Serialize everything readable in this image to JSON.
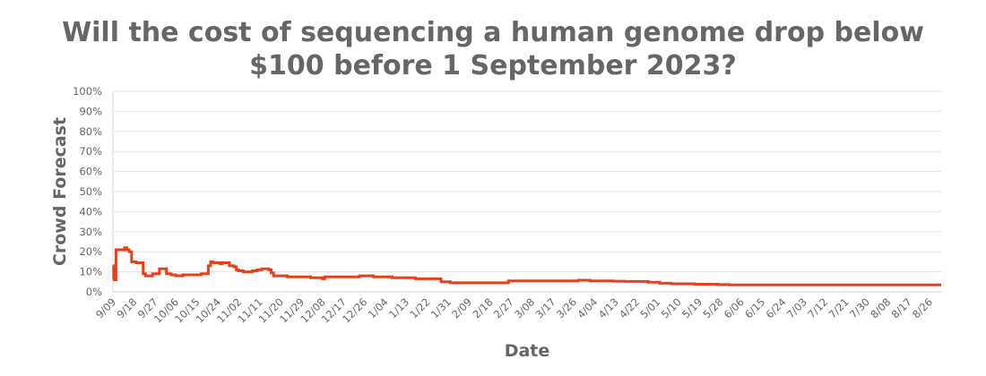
{
  "chart_data": {
    "type": "line",
    "title": "Will the cost of sequencing a human genome drop below $100 before 1 September 2023?",
    "title_lines": [
      "Will the cost of sequencing a human genome drop below",
      "$100 before 1 September 2023?"
    ],
    "xlabel": "Date",
    "ylabel": "Crowd Forecast",
    "ylim": [
      0,
      100
    ],
    "y_ticks": [
      "0%",
      "10%",
      "20%",
      "30%",
      "40%",
      "50%",
      "60%",
      "70%",
      "80%",
      "90%",
      "100%"
    ],
    "x_ticks": [
      "9/09",
      "9/18",
      "9/27",
      "10/06",
      "10/15",
      "10/24",
      "11/02",
      "11/11",
      "11/20",
      "11/29",
      "12/08",
      "12/17",
      "12/26",
      "1/04",
      "1/13",
      "1/22",
      "1/31",
      "2/09",
      "2/18",
      "2/27",
      "3/08",
      "3/17",
      "3/26",
      "4/04",
      "4/13",
      "4/22",
      "5/01",
      "5/10",
      "5/19",
      "5/28",
      "6/06",
      "6/15",
      "6/24",
      "7/03",
      "7/12",
      "7/21",
      "7/30",
      "8/08",
      "8/17",
      "8/26"
    ],
    "grid": true,
    "line_color": "#e8401c",
    "series": [
      {
        "name": "Crowd Forecast",
        "x_day_offset": [
          0,
          0.3,
          0.6,
          1,
          1.3,
          2,
          3,
          4,
          5,
          6,
          7,
          8,
          9,
          10,
          12,
          13,
          14,
          15,
          17,
          18,
          20,
          21,
          22,
          23,
          25,
          26,
          27,
          28,
          30,
          31,
          33,
          35,
          38,
          41,
          42,
          43,
          44,
          46,
          47,
          48,
          50,
          51,
          52,
          53,
          54,
          56,
          60,
          62,
          64,
          66,
          67,
          68,
          69,
          70,
          75,
          80,
          85,
          88,
          90,
          91,
          95,
          100,
          105,
          106,
          110,
          112,
          120,
          130,
          140,
          141,
          145,
          150,
          160,
          168,
          170,
          175,
          180,
          185,
          190,
          200,
          205,
          210,
          215,
          220,
          230,
          235,
          240,
          250,
          260,
          265,
          270,
          280,
          300,
          320,
          356
        ],
        "values": [
          13,
          7,
          6,
          6,
          21,
          21,
          21,
          21,
          22,
          21,
          20,
          15,
          15,
          14.5,
          14.5,
          9,
          8,
          8,
          9,
          9,
          11.5,
          11.5,
          11.5,
          9,
          8.5,
          8.5,
          8,
          8,
          8.5,
          8.5,
          8.5,
          8.5,
          9,
          13,
          15,
          14.5,
          14.5,
          14,
          14.5,
          14.5,
          13,
          13,
          12.5,
          11,
          10.5,
          10,
          10.5,
          11,
          11.5,
          11.5,
          11,
          9.5,
          8,
          8,
          7.5,
          7.5,
          7,
          7,
          6.5,
          7.5,
          7.5,
          7.5,
          7.5,
          8,
          8,
          7.5,
          7,
          6.5,
          6.5,
          5,
          4.5,
          4.5,
          4.5,
          4.5,
          5.5,
          5.5,
          5.5,
          5.5,
          5.5,
          5.8,
          5.5,
          5.5,
          5.3,
          5.2,
          4.8,
          4.3,
          4,
          3.8,
          3.6,
          3.5,
          3.5,
          3.5,
          3.5,
          3.5,
          3.5
        ]
      }
    ]
  }
}
